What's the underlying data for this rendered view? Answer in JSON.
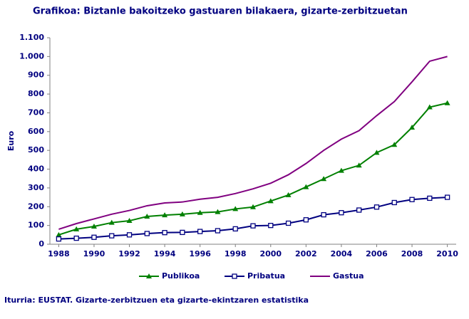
{
  "chart_data": {
    "type": "line",
    "title": "Grafikoa:  Biztanle bakoitzeko gastuaren bilakaera, gizarte-zerbitzuetan",
    "y_label": "Euro",
    "source": "Iturria: EUSTAT. Gizarte-zerbitzuen eta gizarte-ekintzaren estatistika",
    "x": [
      1988,
      1989,
      1990,
      1991,
      1992,
      1993,
      1994,
      1995,
      1996,
      1997,
      1998,
      1999,
      2000,
      2001,
      2002,
      2003,
      2004,
      2005,
      2006,
      2007,
      2008,
      2009,
      2010
    ],
    "series": [
      {
        "name": "Publikoa",
        "color": "#008000",
        "marker": "triangle",
        "values": [
          50,
          80,
          95,
          115,
          125,
          148,
          155,
          160,
          168,
          172,
          188,
          198,
          230,
          262,
          305,
          348,
          392,
          420,
          488,
          530,
          622,
          730,
          752
        ]
      },
      {
        "name": "Pribatua",
        "color": "#000080",
        "marker": "square",
        "values": [
          28,
          32,
          37,
          45,
          50,
          57,
          62,
          63,
          68,
          72,
          82,
          98,
          100,
          112,
          130,
          157,
          168,
          182,
          198,
          222,
          238,
          245,
          250
        ]
      },
      {
        "name": "Gastua",
        "color": "#800080",
        "marker": "none",
        "values": [
          80,
          110,
          135,
          160,
          180,
          205,
          220,
          225,
          240,
          250,
          270,
          295,
          325,
          370,
          430,
          500,
          560,
          605,
          685,
          760,
          865,
          975,
          1000
        ]
      }
    ],
    "xlim": [
      1987.5,
      2010.5
    ],
    "xticks": [
      1988,
      1990,
      1992,
      1994,
      1996,
      1998,
      2000,
      2002,
      2004,
      2006,
      2008,
      2010
    ],
    "ylim": [
      0,
      1100
    ],
    "yticks": [
      0,
      100,
      200,
      300,
      400,
      500,
      600,
      700,
      800,
      900,
      {
        "value": 1000,
        "label": "1.000"
      },
      {
        "value": 1100,
        "label": "1.100"
      }
    ],
    "legend": "bottom"
  }
}
